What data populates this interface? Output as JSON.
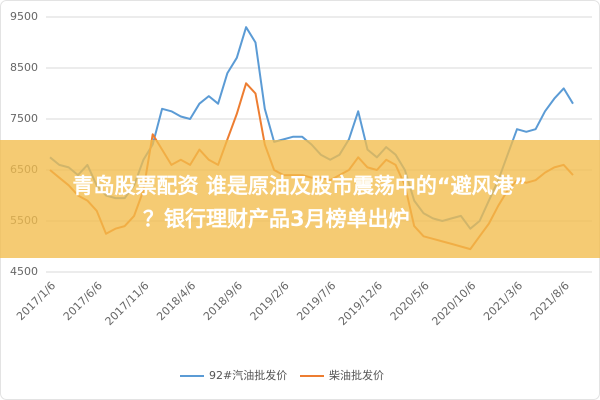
{
  "chart_data": {
    "type": "line",
    "categories": [
      "2017/1/6",
      null,
      null,
      null,
      null,
      "2017/6/6",
      null,
      null,
      null,
      null,
      "2017/11/6",
      null,
      null,
      null,
      null,
      "2018/4/6",
      null,
      null,
      null,
      null,
      "2018/9/6",
      null,
      null,
      null,
      null,
      "2019/2/6",
      null,
      null,
      null,
      null,
      "2019/7/6",
      null,
      null,
      null,
      null,
      "2019/12/6",
      null,
      null,
      null,
      null,
      "2020/5/6",
      null,
      null,
      null,
      null,
      "2020/10/6",
      null,
      null,
      null,
      null,
      "2021/3/6",
      null,
      null,
      null,
      null,
      "2021/8/6",
      null
    ],
    "series": [
      {
        "name": "92#汽油批发价",
        "color": "#5b9bd5",
        "values": [
          6750,
          6600,
          6550,
          6400,
          6600,
          6200,
          6000,
          5950,
          5950,
          6200,
          6700,
          7000,
          7700,
          7650,
          7550,
          7500,
          7800,
          7950,
          7800,
          8400,
          8700,
          9300,
          9000,
          7700,
          7050,
          7100,
          7150,
          7150,
          7000,
          6800,
          6700,
          6800,
          7100,
          7650,
          6900,
          6750,
          6950,
          6800,
          6500,
          5900,
          5650,
          5550,
          5500,
          5550,
          5600,
          5350,
          5500,
          5900,
          6300,
          6800,
          7300,
          7250,
          7300,
          7650,
          7900,
          8100,
          7800
        ]
      },
      {
        "name": "柴油批发价",
        "color": "#ed7d31",
        "values": [
          6500,
          6350,
          6200,
          6000,
          5900,
          5700,
          5250,
          5350,
          5400,
          5600,
          6100,
          7200,
          6900,
          6600,
          6700,
          6600,
          6900,
          6700,
          6600,
          7100,
          7600,
          8200,
          8000,
          7000,
          6500,
          6400,
          6400,
          6400,
          6350,
          6350,
          6300,
          6400,
          6500,
          6750,
          6550,
          6500,
          6700,
          6600,
          6200,
          5400,
          5200,
          5150,
          5100,
          5050,
          5000,
          4950,
          5200,
          5450,
          5800,
          6100,
          6300,
          6250,
          6300,
          6450,
          6550,
          6600,
          6400
        ]
      }
    ],
    "ylim": [
      4500,
      9500
    ],
    "yticks": [
      4500,
      5500,
      6500,
      7500,
      8500,
      9500
    ],
    "grid": true,
    "legend": "bottom"
  },
  "overlay_text": [
    "青岛股票配资 谁是原油及股市震荡中的“避风港”",
    "？银行理财产品3月榜单出炉"
  ]
}
